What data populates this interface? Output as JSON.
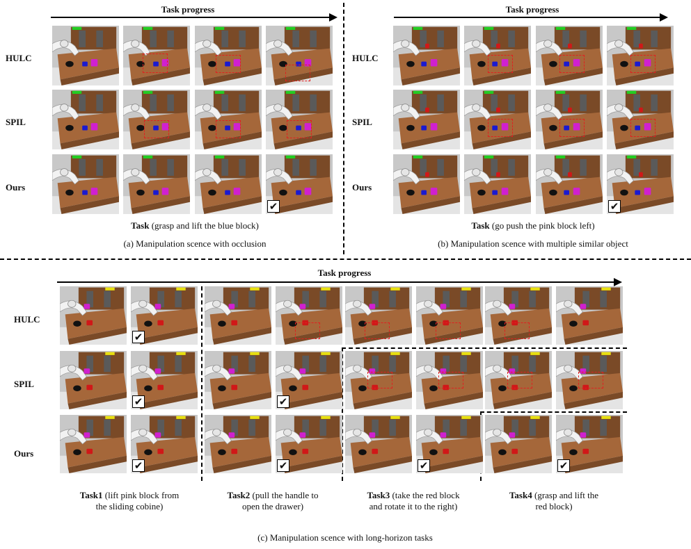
{
  "panel_a": {
    "header": "Task progress",
    "rows": [
      "HULC",
      "SPIL",
      "Ours"
    ],
    "task_bold": "Task",
    "task_text": " (grasp and lift the blue block)",
    "caption": "(a) Manipulation scence with occlusion"
  },
  "panel_b": {
    "header": "Task progress",
    "rows": [
      "HULC",
      "SPIL",
      "Ours"
    ],
    "task_bold": "Task",
    "task_text": " (go push the pink block left)",
    "caption": "(b) Manipulation scence with multiple similar object"
  },
  "panel_c": {
    "header": "Task progress",
    "rows": [
      "HULC",
      "SPIL",
      "Ours"
    ],
    "tasks": [
      {
        "bold": "Task1",
        "line1": " (lift pink block from",
        "line2": "the sliding cobine)"
      },
      {
        "bold": "Task2",
        "line1": " (pull the handle to",
        "line2": "open the drawer)"
      },
      {
        "bold": "Task3",
        "line1": " (take the red block",
        "line2": "and rotate it to the right)"
      },
      {
        "bold": "Task4",
        "line1": " (grasp and lift the",
        "line2": "red block)"
      }
    ],
    "caption": "(c) Manipulation scence with long-horizon tasks"
  },
  "checkmark": "✔",
  "colors": {
    "desk": "#a5673a",
    "desk_dark": "#7a4a27",
    "blue_block": "#1a1ad0",
    "pink_block": "#d020d0",
    "red_block": "#d01818",
    "annotation_box": "#e02020",
    "button_green": "#22cc22",
    "button_yellow": "#e8e010"
  }
}
